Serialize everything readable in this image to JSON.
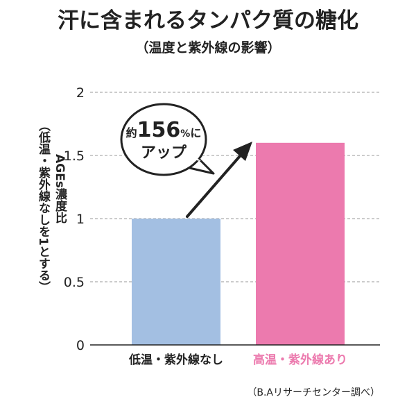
{
  "chart_data": {
    "type": "bar",
    "title": "汗に含まれるタンパク質の糖化",
    "subtitle": "（温度と紫外線の影響）",
    "ylabel_lines": [
      "（低温・紫外線なしを1とする）",
      "AGEs濃度比"
    ],
    "categories": [
      "低温・紫外線なし",
      "高温・紫外線あり"
    ],
    "values": [
      1.0,
      1.6
    ],
    "ylim": [
      0,
      2
    ],
    "yticks": [
      0,
      0.5,
      1,
      1.5,
      2
    ],
    "ytick_labels": [
      "0",
      "0.5",
      "1",
      "1.5",
      "2"
    ],
    "grid": true,
    "annotation": {
      "prefix": "約",
      "number": "156",
      "unit": "%",
      "suffix": "に",
      "line2": "アップ"
    },
    "source": "（B.Aリサーチセンター調べ）",
    "colors": {
      "bar_low": "#a3bfe2",
      "bar_high": "#ec7aae",
      "high_label": "#ec7aae",
      "text": "#222222",
      "grid": "#9a9a9a",
      "arrow": "#222222"
    }
  }
}
